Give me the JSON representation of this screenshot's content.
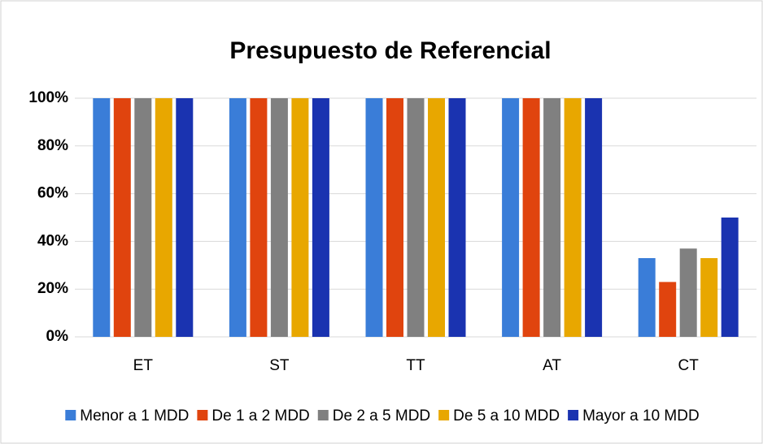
{
  "chart_data": {
    "type": "bar",
    "title": "Presupuesto de Referencial",
    "categories": [
      "ET",
      "ST",
      "TT",
      "AT",
      "CT"
    ],
    "series": [
      {
        "name": "Menor a 1 MDD",
        "color": "#3a7dd8",
        "values": [
          100,
          100,
          100,
          100,
          33
        ]
      },
      {
        "name": "De 1 a 2 MDD",
        "color": "#e0440e",
        "values": [
          100,
          100,
          100,
          100,
          23
        ]
      },
      {
        "name": "De 2 a 5 MDD",
        "color": "#808080",
        "values": [
          100,
          100,
          100,
          100,
          37
        ]
      },
      {
        "name": "De 5 a 10 MDD",
        "color": "#e8a700",
        "values": [
          100,
          100,
          100,
          100,
          33
        ]
      },
      {
        "name": "Mayor a 10 MDD",
        "color": "#1a33b0",
        "values": [
          100,
          100,
          100,
          100,
          50
        ]
      }
    ],
    "ylim": [
      0,
      100
    ],
    "yticks": [
      {
        "value": 0,
        "label": "0%"
      },
      {
        "value": 20,
        "label": "20%"
      },
      {
        "value": 40,
        "label": "40%"
      },
      {
        "value": 60,
        "label": "60%"
      },
      {
        "value": 80,
        "label": "80%"
      },
      {
        "value": 100,
        "label": "100%"
      }
    ],
    "grid": true,
    "legend": "bottom"
  }
}
